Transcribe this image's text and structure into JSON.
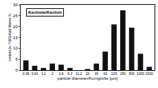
{
  "chart_data": {
    "type": "bar",
    "title": "Kaolinite/Kaolinit",
    "x_label": "particle diameter/Korngröße [µm]",
    "y_label": "content [w.-%]/Gehalt Masse-%",
    "categories": [
      "0.36",
      "0.63",
      "1.1",
      "2",
      "3.6",
      "6.3",
      "11.2",
      "20",
      "36",
      "63",
      "125",
      "250",
      "500",
      "1000",
      "2000"
    ],
    "values": [
      4.5,
      2,
      1,
      3,
      2.5,
      1,
      0,
      0.5,
      3,
      8.5,
      21,
      27.5,
      19.5,
      7.5,
      1.5
    ],
    "color": "#111111",
    "ylim": [
      0,
      30
    ],
    "yticks": [
      0,
      5,
      10,
      15,
      20,
      25,
      30
    ],
    "grid": false
  }
}
